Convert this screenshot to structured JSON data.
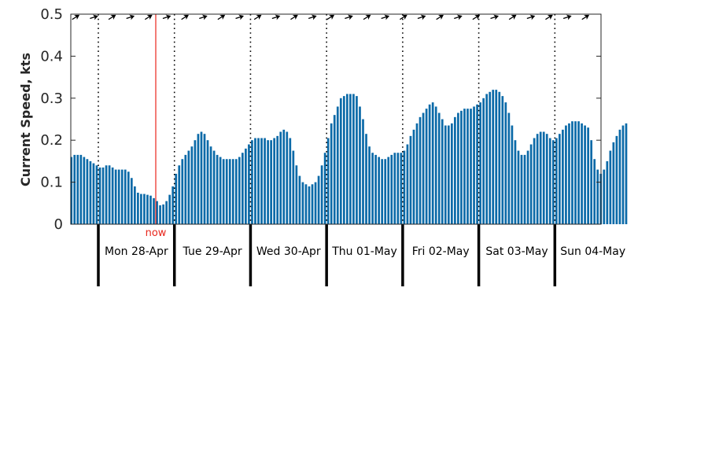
{
  "chart_data": {
    "type": "bar",
    "title": "",
    "xlabel": "",
    "ylabel": "Current Speed, kts",
    "ylim": [
      0,
      0.5
    ],
    "yticks": [
      "0",
      "0.1",
      "0.2",
      "0.3",
      "0.4",
      "0.5"
    ],
    "bar_color": "#0b6aa8",
    "interval_hours": 1,
    "series_start_hour": 0,
    "days": [
      "Mon 28-Apr",
      "Tue 29-Apr",
      "Wed 30-Apr",
      "Thu 01-May",
      "Fri 02-May",
      "Sat 03-May",
      "Sun 04-May"
    ],
    "now": {
      "label": "now",
      "hour": 35,
      "color": "#e8261c"
    },
    "direction_arrows_count": 29,
    "values": [
      0.16,
      0.165,
      0.165,
      0.165,
      0.16,
      0.155,
      0.15,
      0.145,
      0.14,
      0.135,
      0.135,
      0.14,
      0.14,
      0.135,
      0.13,
      0.13,
      0.13,
      0.13,
      0.125,
      0.11,
      0.09,
      0.075,
      0.072,
      0.072,
      0.07,
      0.068,
      0.062,
      0.055,
      0.045,
      0.047,
      0.055,
      0.07,
      0.09,
      0.12,
      0.14,
      0.155,
      0.165,
      0.175,
      0.185,
      0.2,
      0.215,
      0.22,
      0.215,
      0.2,
      0.185,
      0.175,
      0.165,
      0.16,
      0.155,
      0.155,
      0.155,
      0.155,
      0.155,
      0.16,
      0.17,
      0.18,
      0.19,
      0.2,
      0.205,
      0.205,
      0.205,
      0.205,
      0.2,
      0.2,
      0.205,
      0.21,
      0.22,
      0.225,
      0.22,
      0.205,
      0.175,
      0.14,
      0.115,
      0.1,
      0.095,
      0.09,
      0.095,
      0.1,
      0.115,
      0.14,
      0.17,
      0.205,
      0.24,
      0.26,
      0.28,
      0.3,
      0.305,
      0.31,
      0.31,
      0.31,
      0.305,
      0.28,
      0.25,
      0.215,
      0.185,
      0.17,
      0.165,
      0.16,
      0.155,
      0.155,
      0.16,
      0.165,
      0.17,
      0.17,
      0.17,
      0.175,
      0.19,
      0.21,
      0.225,
      0.24,
      0.255,
      0.265,
      0.275,
      0.285,
      0.29,
      0.28,
      0.265,
      0.25,
      0.235,
      0.235,
      0.24,
      0.255,
      0.265,
      0.27,
      0.275,
      0.275,
      0.275,
      0.28,
      0.285,
      0.29,
      0.3,
      0.31,
      0.315,
      0.32,
      0.32,
      0.315,
      0.305,
      0.29,
      0.265,
      0.235,
      0.2,
      0.175,
      0.165,
      0.165,
      0.175,
      0.19,
      0.205,
      0.215,
      0.22,
      0.22,
      0.215,
      0.205,
      0.2,
      0.205,
      0.215,
      0.225,
      0.235,
      0.24,
      0.245,
      0.245,
      0.245,
      0.24,
      0.235,
      0.23,
      0.2,
      0.155,
      0.13,
      0.12,
      0.13,
      0.15,
      0.175,
      0.195,
      0.21,
      0.225,
      0.235,
      0.24
    ]
  }
}
